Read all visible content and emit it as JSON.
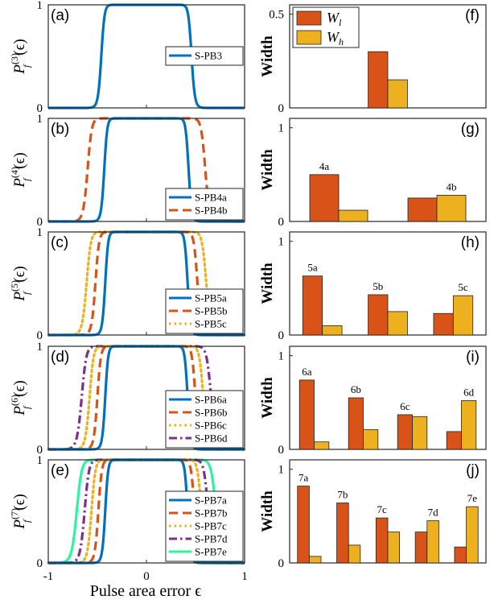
{
  "colors": {
    "blue": "#0072BD",
    "orange": "#D95319",
    "yellow": "#EDB120",
    "purple": "#7E2F8E",
    "green": "#2BF5A0",
    "bar_low": "#D95319",
    "bar_high": "#EDB120"
  },
  "xaxis": {
    "label": "Pulse area error ϵ",
    "ticks": [
      "-1",
      "0",
      "1"
    ]
  },
  "chart_data": [
    {
      "id": "a",
      "panel_label": "(a)",
      "type": "line",
      "order": 3,
      "ylabel_base": "P",
      "ylabel_sup": "(3)",
      "ylabel_sub": "f",
      "ylabel_arg": "(ϵ)",
      "xlim": [
        -1,
        1
      ],
      "ylim": [
        0,
        1
      ],
      "yticks": [
        "0",
        "1"
      ],
      "series": [
        {
          "name": "S-PB3",
          "color": "blue",
          "dash": "solid",
          "half_width": 0.46
        }
      ]
    },
    {
      "id": "b",
      "panel_label": "(b)",
      "type": "line",
      "order": 4,
      "ylabel_base": "P",
      "ylabel_sup": "(4)",
      "ylabel_sub": "f",
      "ylabel_arg": "(ϵ)",
      "xlim": [
        -1,
        1
      ],
      "ylim": [
        0,
        1
      ],
      "yticks": [
        "0",
        "1"
      ],
      "series": [
        {
          "name": "S-PB4a",
          "color": "blue",
          "dash": "solid",
          "half_width": 0.43
        },
        {
          "name": "S-PB4b",
          "color": "orange",
          "dash": "dashed",
          "half_width": 0.6
        }
      ]
    },
    {
      "id": "c",
      "panel_label": "(c)",
      "type": "line",
      "order": 5,
      "ylabel_base": "P",
      "ylabel_sup": "(5)",
      "ylabel_sub": "f",
      "ylabel_arg": "(ϵ)",
      "xlim": [
        -1,
        1
      ],
      "ylim": [
        0,
        1
      ],
      "yticks": [
        "0",
        "1"
      ],
      "series": [
        {
          "name": "S-PB5a",
          "color": "blue",
          "dash": "solid",
          "half_width": 0.42
        },
        {
          "name": "S-PB5b",
          "color": "orange",
          "dash": "dashed",
          "half_width": 0.52
        },
        {
          "name": "S-PB5c",
          "color": "yellow",
          "dash": "dotted",
          "half_width": 0.61
        }
      ]
    },
    {
      "id": "d",
      "panel_label": "(d)",
      "type": "line",
      "order": 6,
      "ylabel_base": "P",
      "ylabel_sup": "(6)",
      "ylabel_sub": "f",
      "ylabel_arg": "(ϵ)",
      "xlim": [
        -1,
        1
      ],
      "ylim": [
        0,
        1
      ],
      "yticks": [
        "0",
        "1"
      ],
      "series": [
        {
          "name": "S-PB6a",
          "color": "blue",
          "dash": "solid",
          "half_width": 0.42
        },
        {
          "name": "S-PB6b",
          "color": "orange",
          "dash": "dashed",
          "half_width": 0.5
        },
        {
          "name": "S-PB6c",
          "color": "yellow",
          "dash": "dotted",
          "half_width": 0.58
        },
        {
          "name": "S-PB6d",
          "color": "purple",
          "dash": "dashdot",
          "half_width": 0.66
        }
      ]
    },
    {
      "id": "e",
      "panel_label": "(e)",
      "type": "line",
      "order": 7,
      "ylabel_base": "P",
      "ylabel_sup": "(7)",
      "ylabel_sub": "f",
      "ylabel_arg": "(ϵ)",
      "xlim": [
        -1,
        1
      ],
      "ylim": [
        0,
        1
      ],
      "yticks": [
        "0",
        "1"
      ],
      "series": [
        {
          "name": "S-PB7a",
          "color": "blue",
          "dash": "solid",
          "half_width": 0.42
        },
        {
          "name": "S-PB7b",
          "color": "orange",
          "dash": "dashed",
          "half_width": 0.49
        },
        {
          "name": "S-PB7c",
          "color": "yellow",
          "dash": "dotted",
          "half_width": 0.56
        },
        {
          "name": "S-PB7d",
          "color": "purple",
          "dash": "dashdot",
          "half_width": 0.63
        },
        {
          "name": "S-PB7e",
          "color": "green",
          "dash": "solid",
          "half_width": 0.71
        }
      ]
    },
    {
      "id": "f",
      "panel_label": "(f)",
      "type": "bar",
      "ylabel": "Width",
      "ylim": [
        0,
        0.55
      ],
      "yticks": [
        {
          "v": 0,
          "t": "0"
        },
        {
          "v": 0.5,
          "t": "0.5"
        }
      ],
      "series_names": [
        "W_l",
        "W_h"
      ],
      "legend": [
        {
          "base": "W",
          "sub": "l",
          "color": "bar_low"
        },
        {
          "base": "W",
          "sub": "h",
          "color": "bar_high"
        }
      ],
      "categories": [
        ""
      ],
      "slot_count": 3,
      "slot_start": 1,
      "values_low": [
        0.3
      ],
      "values_high": [
        0.15
      ]
    },
    {
      "id": "g",
      "panel_label": "(g)",
      "type": "bar",
      "ylabel": "Width",
      "ylim": [
        0,
        1.1
      ],
      "yticks": [
        {
          "v": 0,
          "t": "0"
        },
        {
          "v": 1,
          "t": "1"
        }
      ],
      "categories": [
        "4a",
        "4b"
      ],
      "slot_count": 2,
      "slot_start": 0,
      "values_low": [
        0.5,
        0.25
      ],
      "values_high": [
        0.12,
        0.28
      ]
    },
    {
      "id": "h",
      "panel_label": "(h)",
      "type": "bar",
      "ylabel": "Width",
      "ylim": [
        0,
        1.1
      ],
      "yticks": [
        {
          "v": 0,
          "t": "0"
        },
        {
          "v": 1,
          "t": "1"
        }
      ],
      "categories": [
        "5a",
        "5b",
        "5c"
      ],
      "slot_count": 3,
      "slot_start": 0,
      "values_low": [
        0.63,
        0.43,
        0.23
      ],
      "values_high": [
        0.1,
        0.25,
        0.42
      ]
    },
    {
      "id": "i",
      "panel_label": "(i)",
      "type": "bar",
      "ylabel": "Width",
      "ylim": [
        0,
        1.1
      ],
      "yticks": [
        {
          "v": 0,
          "t": "0"
        },
        {
          "v": 1,
          "t": "1"
        }
      ],
      "categories": [
        "6a",
        "6b",
        "6c",
        "6d"
      ],
      "slot_count": 4,
      "slot_start": 0,
      "values_low": [
        0.74,
        0.55,
        0.37,
        0.19
      ],
      "values_high": [
        0.08,
        0.21,
        0.35,
        0.52
      ]
    },
    {
      "id": "j",
      "panel_label": "(j)",
      "type": "bar",
      "ylabel": "Width",
      "ylim": [
        0,
        1.1
      ],
      "yticks": [
        {
          "v": 0,
          "t": "0"
        },
        {
          "v": 1,
          "t": "1"
        }
      ],
      "categories": [
        "7a",
        "7b",
        "7c",
        "7d",
        "7e"
      ],
      "slot_count": 5,
      "slot_start": 0,
      "values_low": [
        0.82,
        0.64,
        0.48,
        0.33,
        0.17
      ],
      "values_high": [
        0.07,
        0.19,
        0.33,
        0.45,
        0.6
      ]
    }
  ]
}
